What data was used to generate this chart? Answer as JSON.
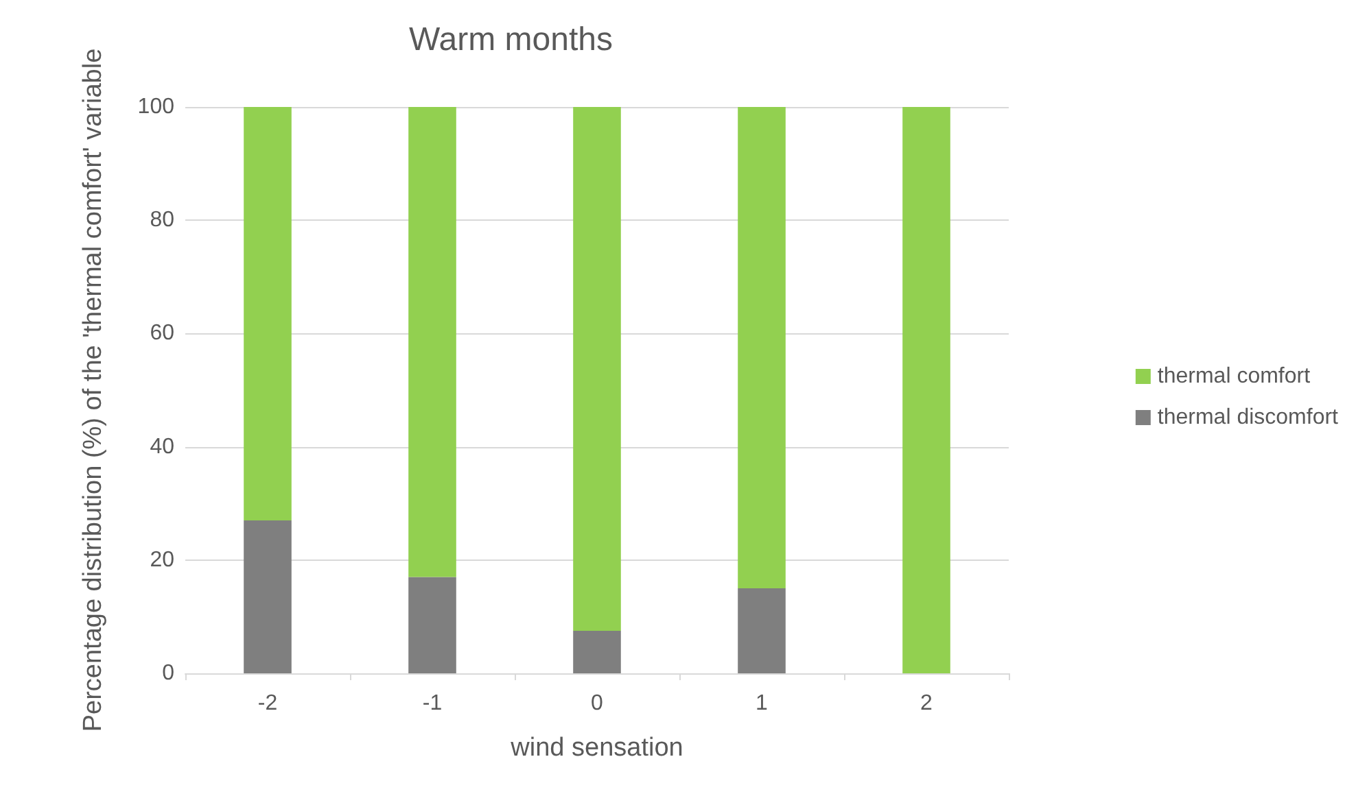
{
  "chart_data": {
    "type": "bar",
    "title": "Warm months",
    "xlabel": "wind sensation",
    "ylabel": "Percentage distribution (%) of the 'thermal comfort' variable",
    "categories": [
      "-2",
      "-1",
      "0",
      "1",
      "2"
    ],
    "stacked": true,
    "series": [
      {
        "name": "thermal discomfort",
        "color": "#7f7f7f",
        "values": [
          27,
          17,
          7.5,
          15,
          0
        ]
      },
      {
        "name": "thermal comfort",
        "color": "#92d050",
        "values": [
          73,
          83,
          92.5,
          85,
          100
        ]
      }
    ],
    "ylim": [
      0,
      100
    ],
    "yticks": [
      0,
      20,
      40,
      60,
      80,
      100
    ],
    "grid": "y",
    "legend": "right"
  }
}
